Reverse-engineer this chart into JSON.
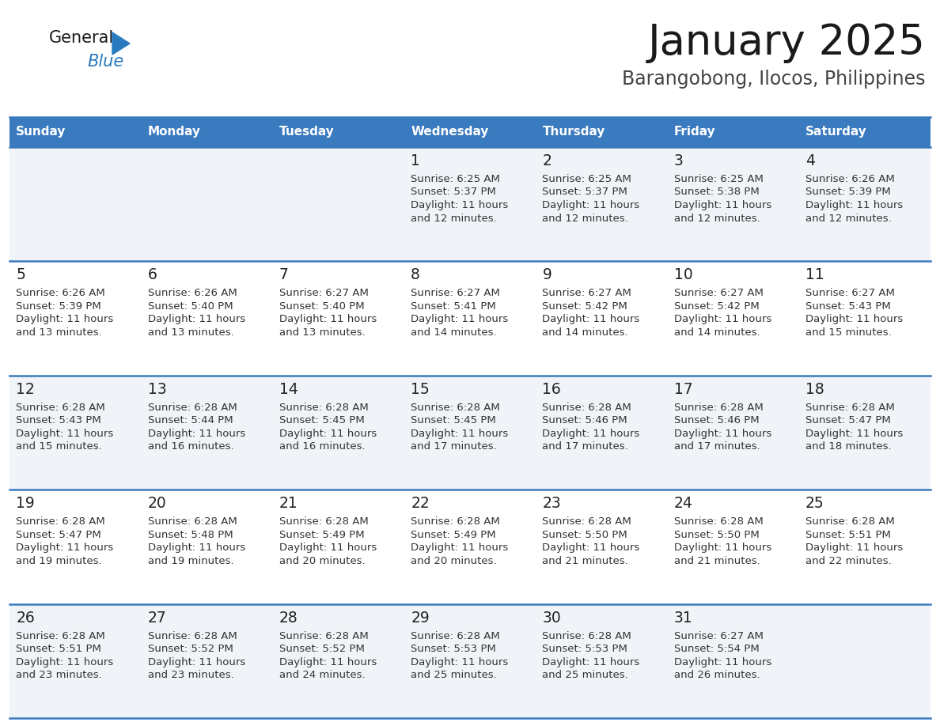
{
  "title": "January 2025",
  "subtitle": "Barangobong, Ilocos, Philippines",
  "header_color": "#3a7abf",
  "header_text_color": "#ffffff",
  "cell_bg_even": "#f0f4f8",
  "cell_bg_odd": "#ffffff",
  "border_color": "#3a7abf",
  "text_color": "#333333",
  "day_num_color": "#222222",
  "days_of_week": [
    "Sunday",
    "Monday",
    "Tuesday",
    "Wednesday",
    "Thursday",
    "Friday",
    "Saturday"
  ],
  "weeks": [
    [
      {
        "day": "",
        "sunrise": "",
        "sunset": "",
        "daylight_h": "",
        "daylight_m": ""
      },
      {
        "day": "",
        "sunrise": "",
        "sunset": "",
        "daylight_h": "",
        "daylight_m": ""
      },
      {
        "day": "",
        "sunrise": "",
        "sunset": "",
        "daylight_h": "",
        "daylight_m": ""
      },
      {
        "day": "1",
        "sunrise": "6:25 AM",
        "sunset": "5:37 PM",
        "daylight_h": "11",
        "daylight_m": "12"
      },
      {
        "day": "2",
        "sunrise": "6:25 AM",
        "sunset": "5:37 PM",
        "daylight_h": "11",
        "daylight_m": "12"
      },
      {
        "day": "3",
        "sunrise": "6:25 AM",
        "sunset": "5:38 PM",
        "daylight_h": "11",
        "daylight_m": "12"
      },
      {
        "day": "4",
        "sunrise": "6:26 AM",
        "sunset": "5:39 PM",
        "daylight_h": "11",
        "daylight_m": "12"
      }
    ],
    [
      {
        "day": "5",
        "sunrise": "6:26 AM",
        "sunset": "5:39 PM",
        "daylight_h": "11",
        "daylight_m": "13"
      },
      {
        "day": "6",
        "sunrise": "6:26 AM",
        "sunset": "5:40 PM",
        "daylight_h": "11",
        "daylight_m": "13"
      },
      {
        "day": "7",
        "sunrise": "6:27 AM",
        "sunset": "5:40 PM",
        "daylight_h": "11",
        "daylight_m": "13"
      },
      {
        "day": "8",
        "sunrise": "6:27 AM",
        "sunset": "5:41 PM",
        "daylight_h": "11",
        "daylight_m": "14"
      },
      {
        "day": "9",
        "sunrise": "6:27 AM",
        "sunset": "5:42 PM",
        "daylight_h": "11",
        "daylight_m": "14"
      },
      {
        "day": "10",
        "sunrise": "6:27 AM",
        "sunset": "5:42 PM",
        "daylight_h": "11",
        "daylight_m": "14"
      },
      {
        "day": "11",
        "sunrise": "6:27 AM",
        "sunset": "5:43 PM",
        "daylight_h": "11",
        "daylight_m": "15"
      }
    ],
    [
      {
        "day": "12",
        "sunrise": "6:28 AM",
        "sunset": "5:43 PM",
        "daylight_h": "11",
        "daylight_m": "15"
      },
      {
        "day": "13",
        "sunrise": "6:28 AM",
        "sunset": "5:44 PM",
        "daylight_h": "11",
        "daylight_m": "16"
      },
      {
        "day": "14",
        "sunrise": "6:28 AM",
        "sunset": "5:45 PM",
        "daylight_h": "11",
        "daylight_m": "16"
      },
      {
        "day": "15",
        "sunrise": "6:28 AM",
        "sunset": "5:45 PM",
        "daylight_h": "11",
        "daylight_m": "17"
      },
      {
        "day": "16",
        "sunrise": "6:28 AM",
        "sunset": "5:46 PM",
        "daylight_h": "11",
        "daylight_m": "17"
      },
      {
        "day": "17",
        "sunrise": "6:28 AM",
        "sunset": "5:46 PM",
        "daylight_h": "11",
        "daylight_m": "17"
      },
      {
        "day": "18",
        "sunrise": "6:28 AM",
        "sunset": "5:47 PM",
        "daylight_h": "11",
        "daylight_m": "18"
      }
    ],
    [
      {
        "day": "19",
        "sunrise": "6:28 AM",
        "sunset": "5:47 PM",
        "daylight_h": "11",
        "daylight_m": "19"
      },
      {
        "day": "20",
        "sunrise": "6:28 AM",
        "sunset": "5:48 PM",
        "daylight_h": "11",
        "daylight_m": "19"
      },
      {
        "day": "21",
        "sunrise": "6:28 AM",
        "sunset": "5:49 PM",
        "daylight_h": "11",
        "daylight_m": "20"
      },
      {
        "day": "22",
        "sunrise": "6:28 AM",
        "sunset": "5:49 PM",
        "daylight_h": "11",
        "daylight_m": "20"
      },
      {
        "day": "23",
        "sunrise": "6:28 AM",
        "sunset": "5:50 PM",
        "daylight_h": "11",
        "daylight_m": "21"
      },
      {
        "day": "24",
        "sunrise": "6:28 AM",
        "sunset": "5:50 PM",
        "daylight_h": "11",
        "daylight_m": "21"
      },
      {
        "day": "25",
        "sunrise": "6:28 AM",
        "sunset": "5:51 PM",
        "daylight_h": "11",
        "daylight_m": "22"
      }
    ],
    [
      {
        "day": "26",
        "sunrise": "6:28 AM",
        "sunset": "5:51 PM",
        "daylight_h": "11",
        "daylight_m": "23"
      },
      {
        "day": "27",
        "sunrise": "6:28 AM",
        "sunset": "5:52 PM",
        "daylight_h": "11",
        "daylight_m": "23"
      },
      {
        "day": "28",
        "sunrise": "6:28 AM",
        "sunset": "5:52 PM",
        "daylight_h": "11",
        "daylight_m": "24"
      },
      {
        "day": "29",
        "sunrise": "6:28 AM",
        "sunset": "5:53 PM",
        "daylight_h": "11",
        "daylight_m": "25"
      },
      {
        "day": "30",
        "sunrise": "6:28 AM",
        "sunset": "5:53 PM",
        "daylight_h": "11",
        "daylight_m": "25"
      },
      {
        "day": "31",
        "sunrise": "6:27 AM",
        "sunset": "5:54 PM",
        "daylight_h": "11",
        "daylight_m": "26"
      },
      {
        "day": "",
        "sunrise": "",
        "sunset": "",
        "daylight_h": "",
        "daylight_m": ""
      }
    ]
  ]
}
